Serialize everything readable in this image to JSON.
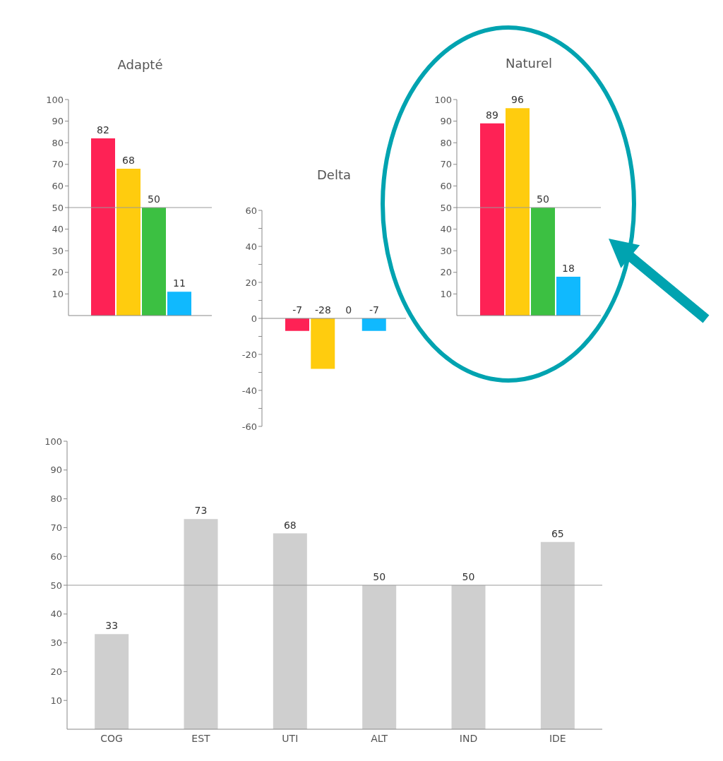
{
  "chart_data": [
    {
      "type": "bar",
      "title": "Adapté",
      "categories": [
        null,
        null,
        null,
        null
      ],
      "values": [
        82,
        68,
        50,
        11
      ],
      "colors": [
        "#fe2255",
        "#ffcc0e",
        "#3cc042",
        "#10b9fe"
      ],
      "ylim": [
        0,
        100
      ],
      "yticks": [
        10,
        20,
        30,
        40,
        50,
        60,
        70,
        80,
        90,
        100
      ],
      "data_labels": true,
      "ref_lines": [
        {
          "axis": "y",
          "value": 50,
          "color": "#999999"
        }
      ]
    },
    {
      "type": "bar",
      "title": "Delta",
      "categories": [
        null,
        null,
        null,
        null
      ],
      "values": [
        -7,
        -28,
        0,
        -7
      ],
      "colors": [
        "#fe2255",
        "#ffcc0e",
        "#3cc042",
        "#10b9fe"
      ],
      "ylim": [
        -60,
        60
      ],
      "yticks": [
        -60,
        {
          "value": -50,
          "label": null
        },
        -40,
        {
          "value": -30,
          "label": null
        },
        -20,
        {
          "value": -10,
          "label": null
        },
        0,
        {
          "value": 10,
          "label": null
        },
        20,
        {
          "value": 30,
          "label": null
        },
        40,
        {
          "value": 50,
          "label": null
        },
        60
      ],
      "data_labels": true
    },
    {
      "type": "bar",
      "title": "Naturel",
      "categories": [
        null,
        null,
        null,
        null
      ],
      "values": [
        89,
        96,
        50,
        18
      ],
      "colors": [
        "#fe2255",
        "#ffcc0e",
        "#3cc042",
        "#10b9fe"
      ],
      "ylim": [
        0,
        100
      ],
      "yticks": [
        10,
        20,
        30,
        40,
        50,
        60,
        70,
        80,
        90,
        100
      ],
      "data_labels": true,
      "ref_lines": [
        {
          "axis": "y",
          "value": 50,
          "color": "#999999"
        }
      ]
    },
    {
      "type": "bar",
      "categories": [
        "COG",
        "EST",
        "UTI",
        "ALT",
        "IND",
        "IDE"
      ],
      "values": [
        33,
        73,
        68,
        50,
        50,
        65
      ],
      "color": "#cfcfcf",
      "ylim": [
        0,
        100
      ],
      "yticks": [
        10,
        20,
        30,
        40,
        50,
        60,
        70,
        80,
        90,
        100
      ],
      "data_labels": true,
      "ref_lines": [
        {
          "axis": "y",
          "value": 50,
          "color": "#999999"
        }
      ]
    }
  ]
}
